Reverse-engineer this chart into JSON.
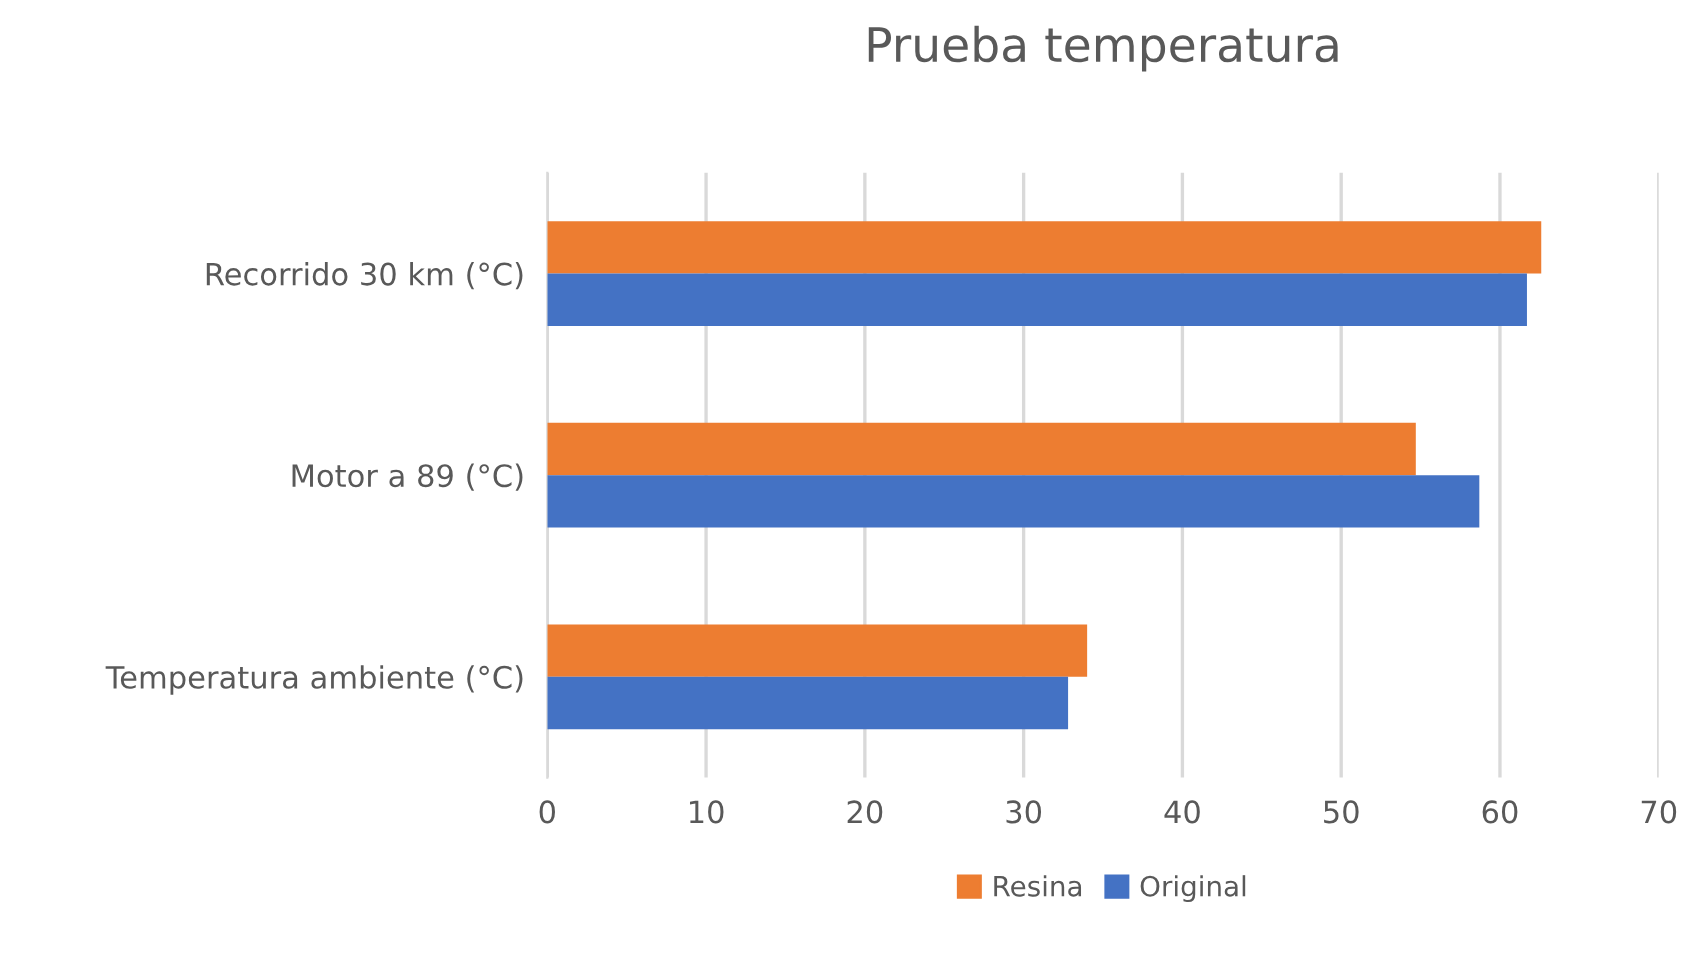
{
  "chart_data": {
    "type": "bar",
    "orientation": "horizontal",
    "title": "Prueba temperatura",
    "categories": [
      "Recorrido 30 km (°C)",
      "Motor a 89 (°C)",
      "Temperatura ambiente (°C)"
    ],
    "series": [
      {
        "name": "Resina",
        "color": "#ed7d31",
        "values": [
          62.6,
          54.7,
          34.0
        ]
      },
      {
        "name": "Original",
        "color": "#4472c4",
        "values": [
          61.7,
          58.7,
          32.8
        ]
      }
    ],
    "xlim": [
      0,
      70
    ],
    "xticks": [
      0,
      10,
      20,
      30,
      40,
      50,
      60,
      70
    ],
    "grid": "x",
    "legend": "bottom"
  }
}
